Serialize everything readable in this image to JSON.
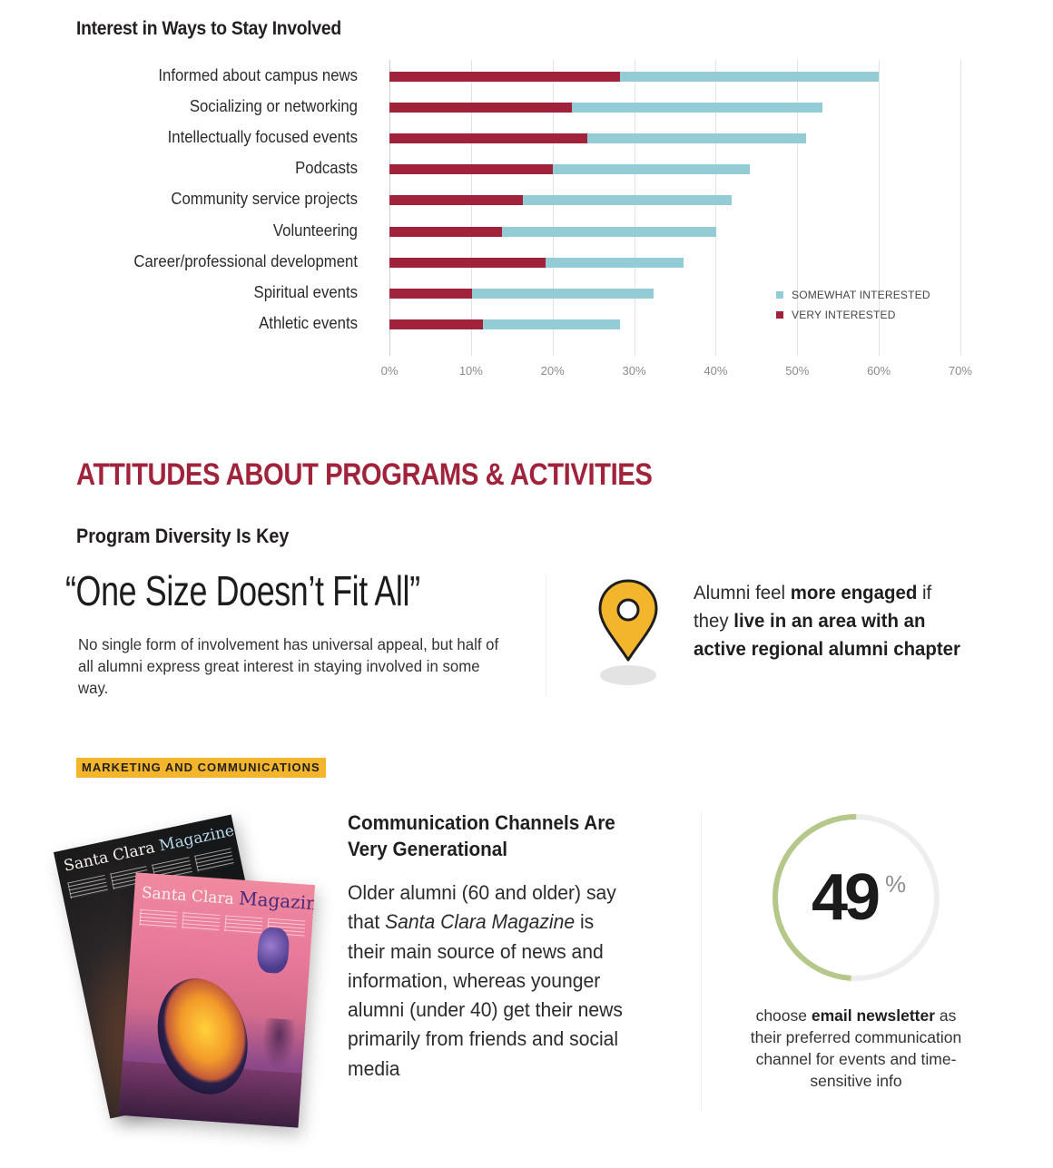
{
  "chart_data": {
    "type": "bar",
    "orientation": "horizontal",
    "stacked": true,
    "title": "Interest in Ways to Stay Involved",
    "xlabel": "",
    "ylabel": "",
    "xlim": [
      0,
      70
    ],
    "x_ticks": [
      "0%",
      "10%",
      "20%",
      "30%",
      "40%",
      "50%",
      "60%",
      "70%"
    ],
    "grid": true,
    "legend_position": "lower right, inside plot",
    "categories": [
      "Informed about campus news",
      "Socializing or networking",
      "Intellectually focused events",
      "Podcasts",
      "Community service projects",
      "Volunteering",
      "Career/professional development",
      "Spiritual events",
      "Athletic events"
    ],
    "series": [
      {
        "name": "VERY INTERESTED",
        "color": "#a0233b",
        "values": [
          28.3,
          22.4,
          24.3,
          20.0,
          16.4,
          13.8,
          19.1,
          10.1,
          11.5
        ]
      },
      {
        "name": "SOMEWHAT INTERESTED",
        "color": "#93ccd4",
        "values": [
          31.7,
          30.7,
          26.8,
          24.2,
          25.6,
          26.3,
          17.0,
          22.3,
          16.8
        ]
      }
    ],
    "totals": [
      60.0,
      53.1,
      51.1,
      44.2,
      42.0,
      40.1,
      36.1,
      32.4,
      28.3
    ]
  },
  "section": {
    "heading": "ATTITUDES ABOUT PROGRAMS & ACTIVITIES",
    "subheading": "Program Diversity Is Key",
    "quote": "“One Size Doesn’t Fit All”",
    "quote_body": "No single form of involvement has universal appeal, but half of all alumni express great interest in staying involved in some way.",
    "engaged": {
      "pre": "Alumni feel ",
      "bold1": "more engaged",
      "mid": " if they ",
      "bold2": "live in an area with an active regional alumni chapter"
    },
    "pin_icon": "map-pin-icon"
  },
  "marketing": {
    "tag": "MARKETING AND COMMUNICATIONS",
    "magazine": {
      "title_serif": "Santa Clara",
      "title_accent": "Magazine"
    },
    "comm_title": "Communication Channels Are Very Generational",
    "comm_body": {
      "p1": "Older alumni (60 and older) say that ",
      "italic": "Santa Clara Magazine",
      "p2": " is their main source of news and information, whereas younger alumni (under 40) get their news primarily from friends and social media"
    },
    "stat": {
      "value": "49",
      "unit": "%",
      "percent": 49,
      "arc_color": "#b5c88a",
      "track_color": "#eeeeee",
      "caption_pre": "choose ",
      "caption_bold": "email newsletter",
      "caption_post": " as their preferred communication channel for events and time-sensitive info"
    }
  },
  "colors": {
    "accent_red": "#a0233b",
    "accent_teal": "#93ccd4",
    "tag_yellow": "#f2b52b",
    "pin_yellow": "#f2b52b"
  }
}
